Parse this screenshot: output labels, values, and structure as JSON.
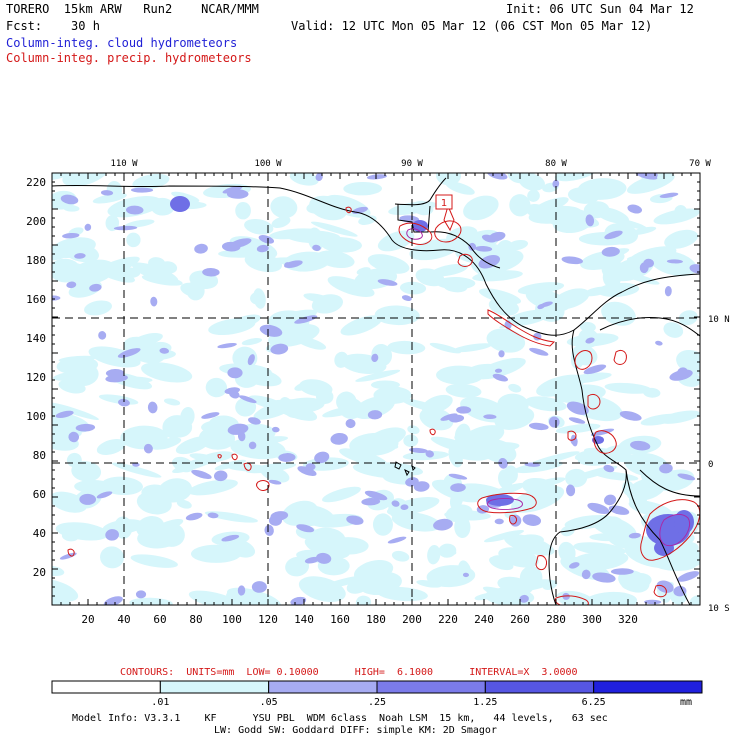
{
  "header": {
    "left_line1": "TORERO  15km ARW   Run2    NCAR/MMM",
    "left_line2": "Fcst:    30 h",
    "right_line1": "Init: 06 UTC Sun 04 Mar 12",
    "right_line2": "Valid: 12 UTC Mon 05 Mar 12 (06 CST Mon 05 Mar 12)",
    "legend_cloud": "Column-integ. cloud hydrometeors",
    "legend_precip": "Column-integ. precip. hydrometeors"
  },
  "map": {
    "top_axis_labels": [
      "110 W",
      "100 W",
      "90 W",
      "80 W",
      "70 W"
    ],
    "right_axis_labels": [
      "10 N",
      "0",
      "10 S"
    ],
    "left_axis_labels": [
      "220",
      "200",
      "180",
      "160",
      "140",
      "120",
      "100",
      "80",
      "60",
      "40",
      "20"
    ],
    "bottom_axis_labels": [
      "20",
      "40",
      "60",
      "80",
      "100",
      "120",
      "140",
      "160",
      "180",
      "200",
      "220",
      "240",
      "260",
      "280",
      "300",
      "320"
    ],
    "marker_label": "1",
    "colors": {
      "cloud_light": "#d6f6fb",
      "cloud_medium": "#a7acf2",
      "cloud_dark": "#6f6fe6",
      "precip_contour": "#d41818",
      "coastline": "#000000"
    }
  },
  "contour_info": "CONTOURS:  UNITS=mm  LOW= 0.10000      HIGH=  6.1000      INTERVAL=X  3.0000",
  "colorbar": {
    "labels": [
      ".01",
      ".05",
      ".25",
      "1.25",
      "6.25"
    ],
    "unit": "mm",
    "colors": [
      "#ffffff",
      "#d6f6fb",
      "#b9dcf6",
      "#a7acf2",
      "#7b7bea",
      "#5656e2",
      "#2020dd"
    ]
  },
  "footer": {
    "line1": "Model Info: V3.3.1    KF      YSU PBL  WDM 6class  Noah LSM  15 km,   44 levels,   63 sec",
    "line2": "LW: Godd SW: Goddard DIFF: simple KM: 2D Smagor"
  }
}
